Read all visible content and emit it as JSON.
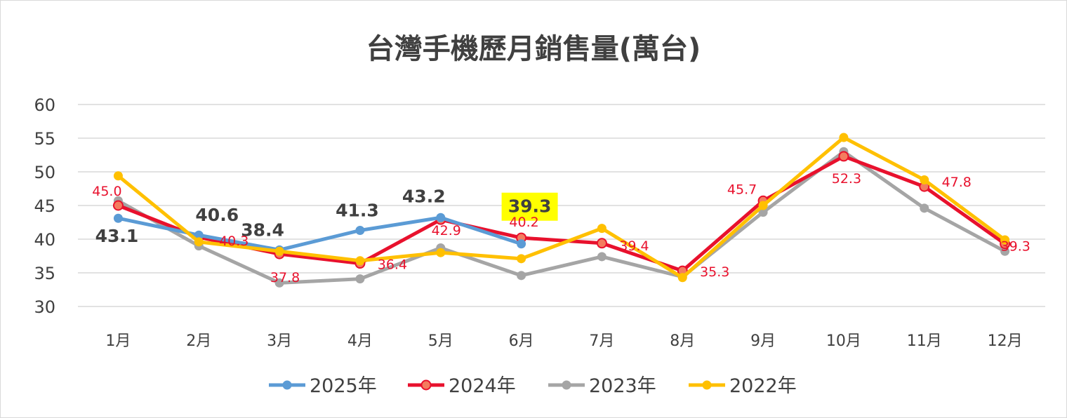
{
  "chart_data": {
    "type": "line",
    "title": "台灣手機歷月銷售量(萬台)",
    "categories": [
      "1月",
      "2月",
      "3月",
      "4月",
      "5月",
      "6月",
      "7月",
      "8月",
      "9月",
      "10月",
      "11月",
      "12月"
    ],
    "ylim": [
      30,
      60
    ],
    "yticks": [
      30,
      35,
      40,
      45,
      50,
      55,
      60
    ],
    "grid": true,
    "legend_position": "bottom",
    "series": [
      {
        "name": "2025年",
        "color": "#5b9bd5",
        "values": [
          43.1,
          40.6,
          38.4,
          41.3,
          43.2,
          39.3,
          null,
          null,
          null,
          null,
          null,
          null
        ],
        "data_labels": [
          "43.1",
          "40.6",
          "38.4",
          "41.3",
          "43.2",
          "39.3"
        ],
        "label_style": "bold",
        "highlight_label": "39.3"
      },
      {
        "name": "2024年",
        "color": "#e8112d",
        "values": [
          45.0,
          40.3,
          37.8,
          36.4,
          42.9,
          40.2,
          39.4,
          35.3,
          45.7,
          52.3,
          47.8,
          39.3
        ],
        "data_labels": [
          "45.0",
          "40.3",
          "37.8",
          "36.4",
          "42.9",
          "40.2",
          "39.4",
          "35.3",
          "45.7",
          "52.3",
          "47.8",
          "39.3"
        ],
        "label_style": "red"
      },
      {
        "name": "2023年",
        "color": "#a5a5a5",
        "values": [
          45.7,
          39.0,
          33.5,
          34.1,
          38.7,
          34.6,
          37.4,
          34.4,
          44.0,
          53.0,
          44.6,
          38.2
        ]
      },
      {
        "name": "2022年",
        "color": "#ffc000",
        "values": [
          49.4,
          39.6,
          38.2,
          36.8,
          38.0,
          37.1,
          41.6,
          34.3,
          45.0,
          55.1,
          48.8,
          39.9
        ]
      }
    ]
  }
}
